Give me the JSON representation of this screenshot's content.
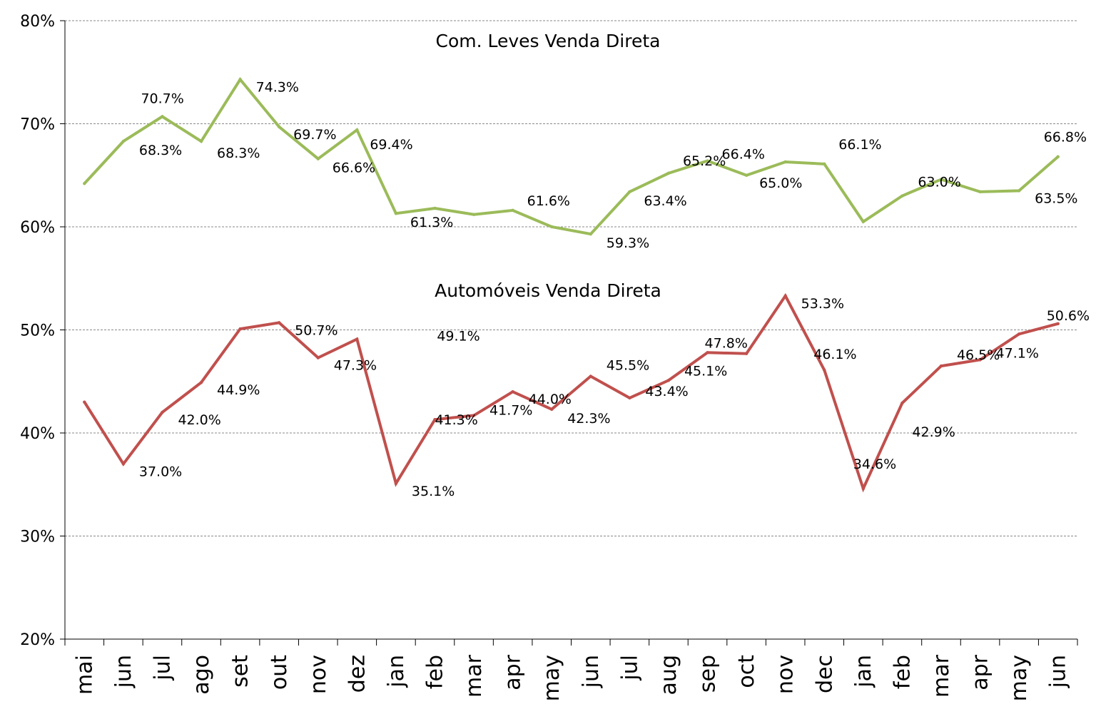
{
  "chart_data": {
    "type": "line",
    "ylim": [
      20,
      80
    ],
    "y_ticks": [
      "20%",
      "30%",
      "40%",
      "50%",
      "60%",
      "70%",
      "80%"
    ],
    "grid": true,
    "categories": [
      "mai",
      "jun",
      "jul",
      "ago",
      "set",
      "out",
      "nov",
      "dez",
      "jan",
      "feb",
      "mar",
      "apr",
      "may",
      "jun",
      "jul",
      "aug",
      "sep",
      "oct",
      "nov",
      "dec",
      "jan",
      "feb",
      "mar",
      "apr",
      "may",
      "jun"
    ],
    "series": [
      {
        "name": "Com. Leves Venda Direta",
        "color": "#9bbb59",
        "values": [
          64.2,
          68.3,
          70.7,
          68.3,
          74.3,
          69.7,
          66.6,
          69.4,
          61.3,
          61.8,
          61.2,
          61.6,
          60.0,
          59.3,
          63.4,
          65.2,
          66.4,
          65.0,
          66.3,
          66.1,
          60.5,
          63.0,
          64.6,
          63.4,
          63.5,
          66.8
        ],
        "labels": [
          "",
          "68.3%",
          "70.7%",
          "68.3%",
          "74.3%",
          "69.7%",
          "66.6%",
          "69.4%",
          "61.3%",
          "",
          "",
          "61.6%",
          "",
          "59.3%",
          "63.4%",
          "65.2%",
          "66.4%",
          "65.0%",
          "",
          "66.1%",
          "",
          "63.0%",
          "",
          "",
          "63.5%",
          "66.8%"
        ]
      },
      {
        "name": "Automóveis Venda Direta",
        "color": "#c0504d",
        "values": [
          43.0,
          37.0,
          42.0,
          44.9,
          50.1,
          50.7,
          47.3,
          49.1,
          35.1,
          41.3,
          41.7,
          44.0,
          42.3,
          45.5,
          43.4,
          45.1,
          47.8,
          47.7,
          53.3,
          46.1,
          34.6,
          42.9,
          46.5,
          47.1,
          49.6,
          50.6
        ],
        "labels": [
          "",
          "37.0%",
          "42.0%",
          "44.9%",
          "",
          "50.7%",
          "47.3%",
          "49.1%",
          "35.1%",
          "41.3%",
          "41.7%",
          "44.0%",
          "42.3%",
          "45.5%",
          "43.4%",
          "45.1%",
          "47.8%",
          "",
          "53.3%",
          "46.1%",
          "34.6%",
          "42.9%",
          "46.5%",
          "47.1%",
          "",
          "50.6%"
        ]
      }
    ]
  }
}
